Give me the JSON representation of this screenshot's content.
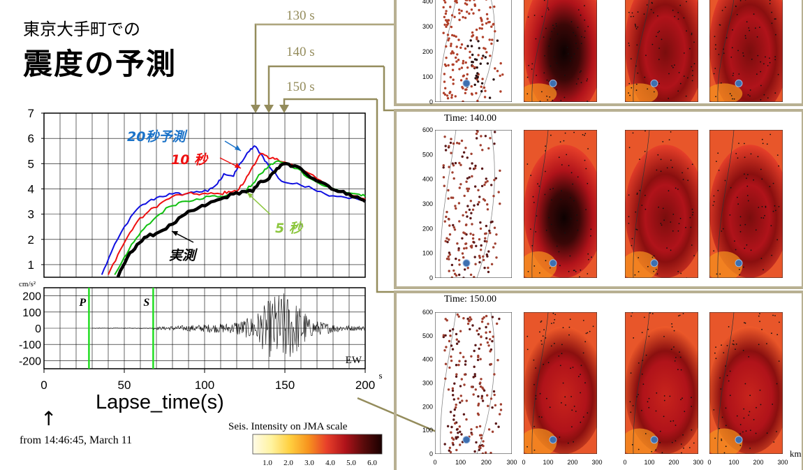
{
  "heading": {
    "line1": "東京大手町での",
    "line2": "震度の予測"
  },
  "frame_labels": [
    "130 s",
    "140 s",
    "150 s"
  ],
  "panel_times": [
    "Time: 140.00",
    "Time: 150.00"
  ],
  "footer": {
    "lapse_label": "Lapse_time(s)",
    "origin_note": "from 14:46:45, March 11",
    "colorbar_title": "Seis. Intensity on JMA scale",
    "colorbar_ticks": [
      "1.0",
      "2.0",
      "3.0",
      "4.0",
      "5.0",
      "6.0"
    ],
    "colorbar_colors": [
      "#fffbe8",
      "#fff3a0",
      "#ffd040",
      "#f7941e",
      "#e8402a",
      "#b0131a",
      "#5a0b0b",
      "#1a0000"
    ],
    "map_unit": "km"
  },
  "map_axes": {
    "y_ticks": [
      "0",
      "100",
      "200",
      "300",
      "400",
      "500",
      "600"
    ],
    "x_ticks": [
      "0",
      "100",
      "200",
      "300"
    ]
  },
  "chart_data": [
    {
      "type": "line",
      "ylim": [
        0.5,
        7
      ],
      "xlim": [
        0,
        200
      ],
      "yticks": [
        "1",
        "2",
        "3",
        "4",
        "5",
        "6",
        "7"
      ],
      "grid": true,
      "annotations": [
        "20秒予測",
        "10 秒",
        "5 秒",
        "実測"
      ],
      "series": [
        {
          "name": "20秒予測",
          "color": "#1010e0",
          "x": [
            36,
            42,
            50,
            58,
            65,
            72,
            80,
            88,
            95,
            102,
            108,
            112,
            118,
            122,
            128,
            131,
            135,
            140,
            148,
            155,
            165,
            175,
            185,
            195,
            200
          ],
          "y": [
            0.6,
            1.5,
            2.5,
            3.2,
            3.5,
            3.7,
            3.8,
            3.8,
            3.9,
            3.9,
            4.2,
            4.6,
            4.5,
            5.0,
            5.5,
            5.7,
            5.4,
            4.9,
            4.3,
            4.2,
            4.1,
            3.8,
            3.7,
            3.6,
            3.5
          ]
        },
        {
          "name": "10 秒",
          "color": "#ee1010",
          "x": [
            40,
            46,
            52,
            58,
            65,
            72,
            80,
            88,
            95,
            102,
            110,
            115,
            120,
            125,
            130,
            135,
            140,
            145,
            152,
            160,
            170,
            180,
            190,
            200
          ],
          "y": [
            0.6,
            1.4,
            2.1,
            2.7,
            3.1,
            3.4,
            3.7,
            3.8,
            3.8,
            3.8,
            3.8,
            3.9,
            3.9,
            4.3,
            4.9,
            5.4,
            5.2,
            5.2,
            5.0,
            4.8,
            4.4,
            4.0,
            3.8,
            3.6
          ]
        },
        {
          "name": "5 秒",
          "color": "#10c010",
          "x": [
            44,
            50,
            56,
            62,
            70,
            78,
            86,
            95,
            103,
            110,
            118,
            125,
            130,
            135,
            140,
            145,
            150,
            158,
            166,
            175,
            185,
            195,
            200
          ],
          "y": [
            0.6,
            1.3,
            1.9,
            2.4,
            2.9,
            3.3,
            3.5,
            3.6,
            3.7,
            3.7,
            3.8,
            3.9,
            4.2,
            4.6,
            4.9,
            5.1,
            5.0,
            4.8,
            4.4,
            4.1,
            3.9,
            3.8,
            3.7
          ]
        },
        {
          "name": "実測",
          "color": "#000000",
          "x": [
            46,
            52,
            58,
            64,
            72,
            80,
            88,
            95,
            102,
            110,
            118,
            125,
            130,
            135,
            140,
            145,
            150,
            155,
            160,
            168,
            175,
            183,
            190,
            197,
            200
          ],
          "y": [
            0.5,
            1.3,
            1.8,
            2.1,
            2.3,
            2.6,
            3.0,
            3.2,
            3.4,
            3.6,
            3.8,
            3.9,
            3.9,
            4.3,
            4.4,
            4.8,
            5.0,
            4.9,
            4.8,
            4.4,
            4.2,
            3.9,
            3.8,
            3.6,
            3.5
          ]
        }
      ]
    },
    {
      "type": "line",
      "ylabel": "cm/s²",
      "channel": "EW",
      "ylim": [
        -250,
        250
      ],
      "xlim": [
        0,
        200
      ],
      "yticks": [
        "200",
        "100",
        "0",
        "-100",
        "-200"
      ],
      "xticks": [
        "0",
        "50",
        "100",
        "150",
        "200"
      ],
      "xunit": "s",
      "markers": [
        {
          "label": "P",
          "x": 28,
          "color": "#22dd22"
        },
        {
          "label": "S",
          "x": 68,
          "color": "#22dd22"
        }
      ]
    }
  ]
}
